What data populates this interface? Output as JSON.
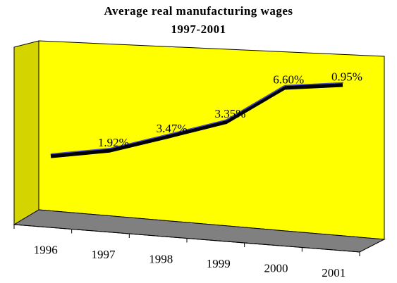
{
  "chart_data": {
    "type": "line",
    "title_lines": [
      "Average real manufacturing wages",
      "1997-2001"
    ],
    "categories": [
      "1996",
      "1997",
      "1998",
      "1999",
      "2000",
      "2001"
    ],
    "values": [
      0,
      1.92,
      5.46,
      9.0,
      16.2,
      17.3
    ],
    "data_labels": [
      "",
      "1.92%",
      "3.47%",
      "3.35%",
      "6.60%",
      "0.95%"
    ],
    "xlabel": "",
    "ylabel": "",
    "ylim": [
      -11,
      23
    ],
    "grid": false,
    "legend": "none",
    "colors": {
      "plot_area": "#ffff00",
      "side_wall": "#d4d400",
      "top_wall": "#ffff66",
      "floor": "#808080",
      "line": "#000000",
      "line_highlight": "#4a4ad0"
    }
  }
}
